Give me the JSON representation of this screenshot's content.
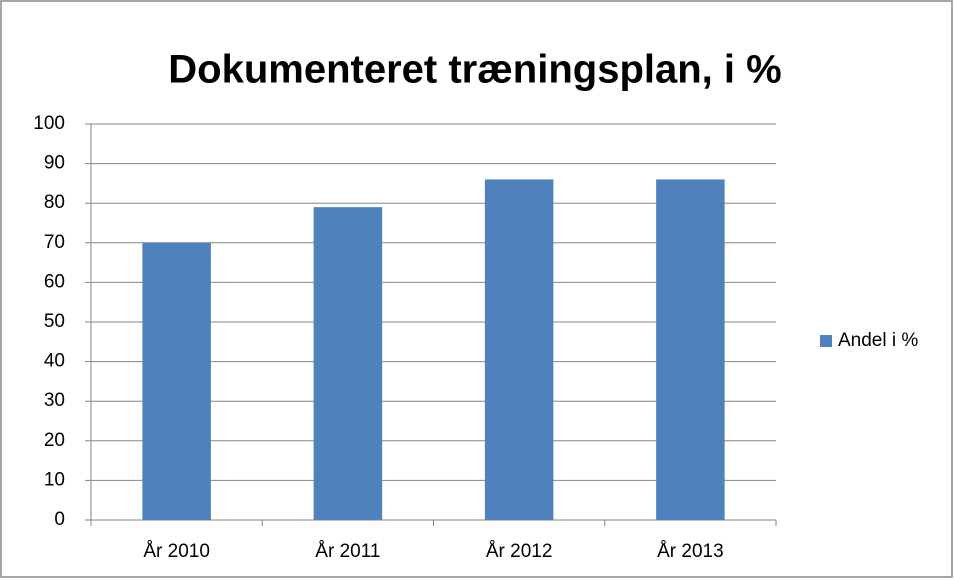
{
  "chart_data": {
    "type": "bar",
    "title": "Dokumenteret træningsplan, i %",
    "categories": [
      "År 2010",
      "År 2011",
      "År 2012",
      "År 2013"
    ],
    "series": [
      {
        "name": "Andel i %",
        "color": "#4f81bd",
        "values": [
          70,
          79,
          86,
          86
        ]
      }
    ],
    "ylim": [
      0,
      100
    ],
    "yticks": [
      0,
      10,
      20,
      30,
      40,
      50,
      60,
      70,
      80,
      90,
      100
    ],
    "grid": true,
    "legend": "right"
  }
}
